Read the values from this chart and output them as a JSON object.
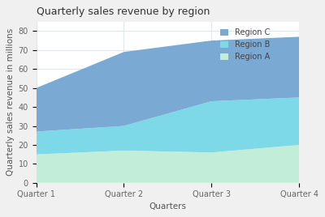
{
  "title": "Quarterly sales revenue by region",
  "xlabel": "Quarters",
  "ylabel": "Quarterly sales revenue in millions",
  "categories": [
    "Quarter 1",
    "Quarter 2",
    "Quarter 3",
    "Quarter 4"
  ],
  "region_a": [
    15,
    17,
    16,
    20
  ],
  "region_b": [
    12,
    13,
    27,
    25
  ],
  "region_c": [
    23,
    39,
    32,
    32
  ],
  "color_a": "#c2edd8",
  "color_b": "#7dd8e8",
  "color_c": "#7aaad4",
  "ylim": [
    0,
    85
  ],
  "yticks": [
    0,
    10,
    20,
    30,
    40,
    50,
    60,
    70,
    80
  ],
  "legend_labels": [
    "Region A",
    "Region B",
    "Region C"
  ],
  "figure_bg": "#f0f0f0",
  "plot_bg": "#ffffff",
  "grid_color": "#e0e8ee",
  "title_fontsize": 9,
  "label_fontsize": 7.5,
  "tick_fontsize": 7
}
